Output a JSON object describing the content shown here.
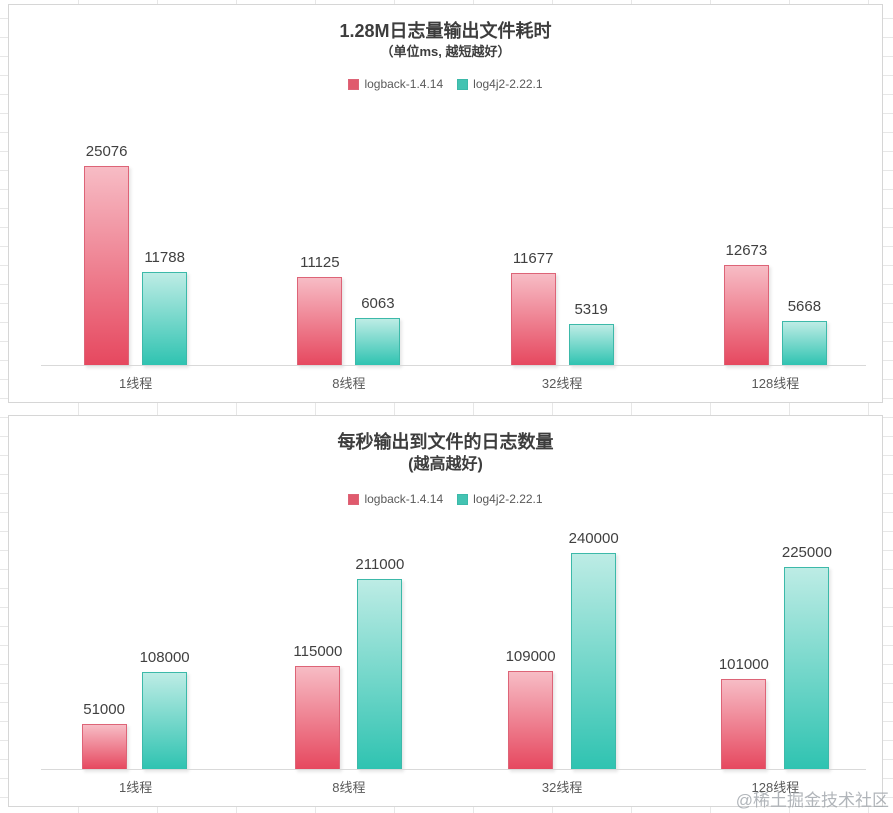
{
  "watermark": "@稀土掘金技术社区",
  "chart_data": [
    {
      "type": "bar",
      "title": "1.28M日志量输出文件耗时",
      "subtitle": "（单位ms, 越短越好）",
      "xlabel": "",
      "ylabel": "",
      "legend_position": "top",
      "grid": false,
      "value_labels": true,
      "categories": [
        "1线程",
        "8线程",
        "32线程",
        "128线程"
      ],
      "series": [
        {
          "name": "logback-1.4.14",
          "values": [
            25076,
            11125,
            11677,
            12673
          ],
          "legend_color": "#e05a6d",
          "color_top": "#f7bcc5",
          "color_bottom": "#e6485f",
          "border_color": "#dd6477"
        },
        {
          "name": "log4j2-2.22.1",
          "values": [
            11788,
            6063,
            5319,
            5668
          ],
          "legend_color": "#43c3b2",
          "color_top": "#bdece5",
          "color_bottom": "#2fc3b1",
          "border_color": "#3cb9a9"
        }
      ]
    },
    {
      "type": "bar",
      "title": "每秒输出到文件的日志数量",
      "subtitle": "(越高越好)",
      "xlabel": "",
      "ylabel": "",
      "legend_position": "top",
      "grid": false,
      "value_labels": true,
      "categories": [
        "1线程",
        "8线程",
        "32线程",
        "128线程"
      ],
      "series": [
        {
          "name": "logback-1.4.14",
          "values": [
            51000,
            115000,
            109000,
            101000
          ],
          "legend_color": "#e05a6d",
          "color_top": "#f7bcc5",
          "color_bottom": "#e6485f",
          "border_color": "#dd6477"
        },
        {
          "name": "log4j2-2.22.1",
          "values": [
            108000,
            211000,
            240000,
            225000
          ],
          "legend_color": "#43c3b2",
          "color_top": "#bdece5",
          "color_bottom": "#2fc3b1",
          "border_color": "#3cb9a9"
        }
      ]
    }
  ]
}
